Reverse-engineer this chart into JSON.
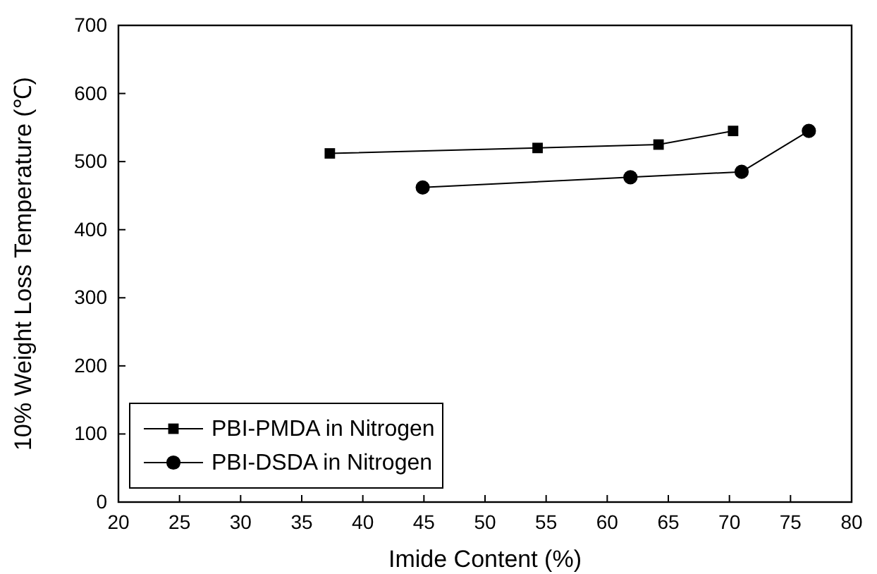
{
  "chart_data": {
    "type": "line",
    "xlabel": "Imide Content (%)",
    "ylabel": "10% Weight Loss Temperature (℃)",
    "xlim": [
      20,
      80
    ],
    "xticks": [
      20,
      25,
      30,
      35,
      40,
      45,
      50,
      55,
      60,
      65,
      70,
      75,
      80
    ],
    "ylim": [
      0,
      700
    ],
    "yticks": [
      0,
      100,
      200,
      300,
      400,
      500,
      600,
      700
    ],
    "legend": "bottom left",
    "grid": false,
    "series": [
      {
        "name": "PBI-PMDA in Nitrogen",
        "color": "#000000",
        "marker": "square",
        "x": [
          37.3,
          54.3,
          64.2,
          70.3
        ],
        "values": [
          512,
          520,
          525,
          545
        ]
      },
      {
        "name": "PBI-DSDA in Nitrogen",
        "color": "#000000",
        "marker": "circle",
        "x": [
          44.9,
          61.9,
          71.0,
          76.5
        ],
        "values": [
          462,
          477,
          485,
          545
        ]
      }
    ]
  }
}
